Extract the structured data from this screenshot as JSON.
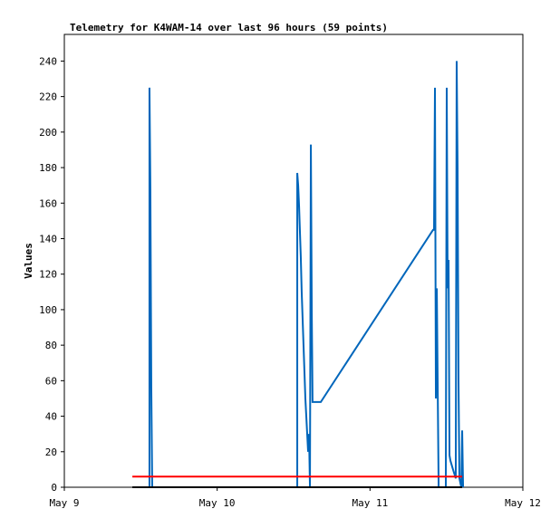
{
  "chart_data": {
    "type": "line",
    "title": "Telemetry for K4WAM-14 over last 96 hours (59 points)",
    "y_label": "Values",
    "xlim": [
      0,
      3
    ],
    "xticks": [
      {
        "value": 0,
        "label": "May 9"
      },
      {
        "value": 1,
        "label": "May 10"
      },
      {
        "value": 2,
        "label": "May 11"
      },
      {
        "value": 3,
        "label": "May 12"
      }
    ],
    "ylim": [
      0,
      255
    ],
    "yticks": [
      0,
      20,
      40,
      60,
      80,
      100,
      120,
      140,
      160,
      180,
      200,
      220,
      240
    ],
    "series": [
      {
        "color": "#0066bb",
        "x": [
          0.557,
          0.557,
          0.563,
          0.569,
          0.575,
          1.524,
          1.524,
          1.53,
          1.536,
          1.541,
          1.547,
          1.553,
          1.559,
          1.565,
          1.571,
          1.577,
          1.589,
          1.595,
          1.601,
          1.607,
          1.613,
          1.619,
          1.624,
          1.678,
          2.413,
          2.419,
          2.425,
          2.431,
          2.437,
          2.449,
          2.496,
          2.502,
          2.508,
          2.514,
          2.52,
          2.526,
          2.543,
          2.561,
          2.567,
          2.573,
          2.579,
          2.585,
          2.597,
          2.603,
          2.609
        ],
        "values": [
          0,
          225,
          168,
          56,
          0,
          0,
          177,
          170,
          158,
          145,
          130,
          110,
          95,
          80,
          65,
          50,
          30,
          20,
          30,
          0,
          193,
          98,
          48,
          48,
          145,
          145,
          225,
          50,
          112,
          0,
          0,
          225,
          112,
          128,
          18,
          15,
          10,
          5,
          240,
          180,
          60,
          5,
          0,
          32,
          0
        ]
      },
      {
        "color": "#ff0000",
        "x": [
          0.445,
          2.603
        ],
        "values": [
          6,
          6
        ]
      },
      {
        "color": "#000000",
        "x": [
          0.445,
          2.603
        ],
        "values": [
          0,
          0
        ]
      }
    ]
  }
}
